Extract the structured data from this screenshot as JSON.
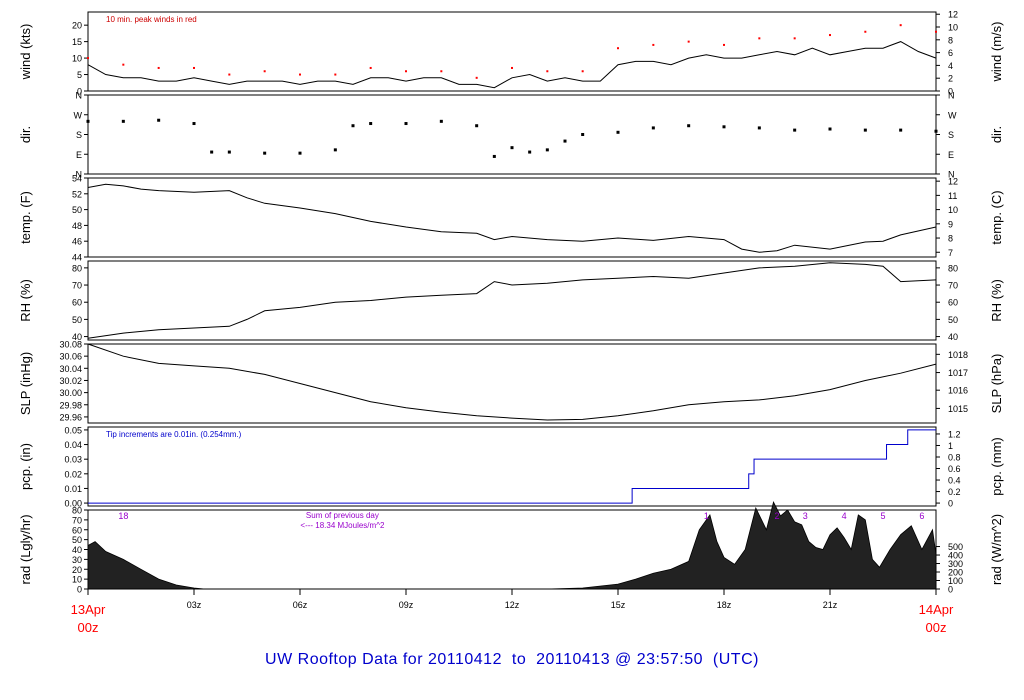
{
  "chart_data": {
    "type": "line",
    "title": "UW Rooftop Data for 20110412  to  20110413 @ 23:57:50  (UTC)",
    "x_domain_hours": [
      0,
      24
    ],
    "x_ticks": [
      {
        "h": 0,
        "label": ""
      },
      {
        "h": 3,
        "label": "03z"
      },
      {
        "h": 6,
        "label": "06z"
      },
      {
        "h": 9,
        "label": "09z"
      },
      {
        "h": 12,
        "label": "12z"
      },
      {
        "h": 15,
        "label": "15z"
      },
      {
        "h": 18,
        "label": "18z"
      },
      {
        "h": 21,
        "label": "21z"
      },
      {
        "h": 24,
        "label": ""
      }
    ],
    "x_edge_labels": {
      "start_day": "13Apr",
      "start_hour": "00z",
      "end_day": "14Apr",
      "end_hour": "00z",
      "color": "#ff0000"
    },
    "panels": [
      {
        "id": "wind",
        "ylabel_left": "wind (kts)",
        "ylabel_right": "wind (m/s)",
        "ylim": [
          0,
          24
        ],
        "left_ticks": [
          0,
          5,
          10,
          15,
          20
        ],
        "right_ticks": [
          0,
          2,
          4,
          6,
          8,
          10,
          12
        ],
        "right_tick_values_in_left_units": [
          0,
          3.89,
          7.78,
          11.66,
          15.55,
          19.44,
          23.33
        ],
        "annotation": "10 min. peak winds in red",
        "annotation_color": "#cc0000",
        "series": [
          {
            "name": "",
            "color": "#000000",
            "x": [
              0,
              0.5,
              1,
              1.5,
              2,
              2.5,
              3,
              3.5,
              4,
              4.5,
              5,
              5.5,
              6,
              6.5,
              7,
              7.5,
              8,
              8.5,
              9,
              9.5,
              10,
              10.5,
              11,
              11.5,
              12,
              12.5,
              13,
              13.5,
              14,
              14.5,
              15,
              15.5,
              16,
              16.5,
              17,
              17.5,
              18,
              18.5,
              19,
              19.5,
              20,
              20.5,
              21,
              21.5,
              22,
              22.5,
              23,
              23.5,
              24
            ],
            "y": [
              8,
              5,
              4,
              4,
              3,
              3,
              4,
              3,
              2,
              3,
              3,
              3,
              2,
              3,
              3,
              2,
              4,
              4,
              3,
              4,
              4,
              2,
              2,
              1,
              4,
              5,
              3,
              4,
              3,
              3,
              8,
              9,
              9,
              8,
              10,
              11,
              10,
              10,
              11,
              12,
              11,
              13,
              11,
              12,
              13,
              13,
              15,
              12,
              10
            ]
          },
          {
            "name": "",
            "color": "#ff0000",
            "x": [
              0,
              1,
              2,
              3,
              4,
              5,
              6,
              7,
              8,
              9,
              10,
              11,
              12,
              13,
              14,
              15,
              16,
              17,
              18,
              19,
              20,
              21,
              22,
              23,
              24
            ],
            "y": [
              10,
              8,
              7,
              7,
              5,
              6,
              5,
              5,
              7,
              6,
              6,
              4,
              7,
              6,
              6,
              13,
              14,
              15,
              14,
              16,
              16,
              17,
              18,
              20,
              18
            ]
          }
        ]
      },
      {
        "id": "dir",
        "ylabel_left": "dir.",
        "ylabel_right": "dir.",
        "ylim": [
          0,
          360
        ],
        "left_ticks": [
          {
            "v": 0,
            "l": "N"
          },
          {
            "v": 90,
            "l": "E"
          },
          {
            "v": 180,
            "l": "S"
          },
          {
            "v": 270,
            "l": "W"
          },
          {
            "v": 360,
            "l": "N"
          }
        ],
        "right_ticks": [
          {
            "v": 0,
            "l": "N"
          },
          {
            "v": 90,
            "l": "E"
          },
          {
            "v": 180,
            "l": "S"
          },
          {
            "v": 270,
            "l": "W"
          },
          {
            "v": 360,
            "l": "N"
          }
        ],
        "series": [
          {
            "name": "",
            "color": "#000000",
            "x": [
              0,
              1,
              2,
              3,
              3.5,
              4,
              5,
              6,
              7,
              7.5,
              8,
              9,
              10,
              11,
              11.5,
              12,
              12.5,
              13,
              13.5,
              14,
              15,
              16,
              17,
              18,
              19,
              20,
              21,
              22,
              23,
              24
            ],
            "y": [
              240,
              240,
              245,
              230,
              100,
              100,
              95,
              95,
              110,
              220,
              230,
              230,
              240,
              220,
              80,
              120,
              100,
              110,
              150,
              180,
              190,
              210,
              220,
              215,
              210,
              200,
              205,
              200,
              200,
              195
            ]
          }
        ]
      },
      {
        "id": "temp",
        "ylabel_left": "temp. (F)",
        "ylabel_right": "temp. (C)",
        "ylim": [
          44,
          54
        ],
        "left_ticks": [
          44,
          46,
          48,
          50,
          52,
          54
        ],
        "right_ticks": [
          7,
          8,
          9,
          10,
          11,
          12
        ],
        "right_tick_values_in_left_units": [
          44.6,
          46.4,
          48.2,
          50.0,
          51.8,
          53.6
        ],
        "series": [
          {
            "name": "",
            "color": "#000000",
            "x": [
              0,
              0.5,
              1,
              1.5,
              2,
              3,
              4,
              4.5,
              5,
              6,
              7,
              8,
              9,
              10,
              11,
              11.5,
              12,
              13,
              14,
              15,
              16,
              17,
              18,
              18.5,
              19,
              19.5,
              20,
              21,
              22,
              22.5,
              23,
              24
            ],
            "y": [
              52.8,
              53.2,
              53.0,
              52.6,
              52.4,
              52.2,
              52.4,
              51.5,
              50.8,
              50.2,
              49.5,
              48.5,
              47.8,
              47.2,
              47.0,
              46.2,
              46.6,
              46.2,
              46.0,
              46.4,
              46.1,
              46.6,
              46.2,
              45.0,
              44.6,
              44.8,
              45.5,
              45.0,
              45.9,
              46.0,
              46.8,
              47.8
            ]
          }
        ]
      },
      {
        "id": "rh",
        "ylabel_left": "RH (%)",
        "ylabel_right": "RH (%)",
        "ylim": [
          38,
          84
        ],
        "left_ticks": [
          40,
          50,
          60,
          70,
          80
        ],
        "right_ticks": [
          40,
          50,
          60,
          70,
          80
        ],
        "right_tick_values_in_left_units": [
          40,
          50,
          60,
          70,
          80
        ],
        "series": [
          {
            "name": "",
            "color": "#000000",
            "x": [
              0,
              1,
              2,
              3,
              4,
              4.5,
              5,
              6,
              7,
              8,
              9,
              10,
              11,
              11.5,
              12,
              13,
              14,
              15,
              16,
              17,
              18,
              19,
              20,
              21,
              22,
              22.5,
              23,
              24
            ],
            "y": [
              39,
              42,
              44,
              45,
              46,
              50,
              55,
              57,
              60,
              61,
              63,
              64,
              65,
              72,
              70,
              71,
              73,
              74,
              75,
              74,
              77,
              80,
              81,
              83,
              82,
              81,
              72,
              73
            ]
          }
        ]
      },
      {
        "id": "slp",
        "ylabel_left": "SLP (inHg)",
        "ylabel_right": "SLP (hPa)",
        "ylim": [
          29.95,
          30.08
        ],
        "left_ticks": [
          29.96,
          29.98,
          30.0,
          30.02,
          30.04,
          30.06,
          30.08
        ],
        "left_tick_labels": [
          "29.96",
          "29.98",
          "30.00",
          "30.02",
          "30.04",
          "30.06",
          "30.08"
        ],
        "right_ticks": [
          1015,
          1016,
          1017,
          1018
        ],
        "right_tick_values_in_left_units": [
          29.974,
          30.004,
          30.033,
          30.063
        ],
        "series": [
          {
            "name": "",
            "color": "#000000",
            "x": [
              0,
              1,
              2,
              3,
              4,
              5,
              6,
              7,
              8,
              9,
              10,
              11,
              12,
              13,
              14,
              15,
              16,
              17,
              18,
              19,
              20,
              21,
              22,
              23,
              24
            ],
            "y": [
              30.08,
              30.06,
              30.048,
              30.044,
              30.04,
              30.03,
              30.015,
              30.0,
              29.985,
              29.975,
              29.968,
              29.962,
              29.958,
              29.955,
              29.956,
              29.962,
              29.97,
              29.98,
              29.985,
              29.988,
              29.995,
              30.005,
              30.02,
              30.032,
              30.047
            ]
          }
        ]
      },
      {
        "id": "pcp",
        "ylabel_left": "pcp. (in)",
        "ylabel_right": "pcp. (mm)",
        "ylim": [
          -0.002,
          0.052
        ],
        "left_ticks": [
          0,
          0.01,
          0.02,
          0.03,
          0.04,
          0.05
        ],
        "left_tick_labels": [
          "0.00",
          "0.01",
          "0.02",
          "0.03",
          "0.04",
          "0.05"
        ],
        "right_ticks": [
          0,
          0.2,
          0.4,
          0.6,
          0.8,
          1,
          1.2
        ],
        "right_tick_labels": [
          "0",
          "0.2",
          "0.4",
          "0.6",
          "0.8",
          "1",
          "1.2"
        ],
        "right_tick_values_in_left_units": [
          0,
          0.00787,
          0.01575,
          0.02362,
          0.0315,
          0.03937,
          0.04724
        ],
        "annotation": "Tip increments are 0.01in. (0.254mm.)",
        "annotation_color": "#0000cc",
        "series": [
          {
            "name": "",
            "color": "#0000cc",
            "step": true,
            "x": [
              0,
              15.4,
              18.7,
              18.85,
              22.6,
              23.2,
              24
            ],
            "y": [
              0,
              0.01,
              0.02,
              0.03,
              0.04,
              0.05,
              0.05
            ]
          }
        ]
      },
      {
        "id": "rad",
        "ylabel_left": "rad (Lgly/hr)",
        "ylabel_right": "rad (W/m^2)",
        "ylim": [
          0,
          80
        ],
        "left_ticks": [
          0,
          10,
          20,
          30,
          40,
          50,
          60,
          70,
          80
        ],
        "right_ticks": [
          0,
          100,
          200,
          300,
          400,
          500
        ],
        "right_tick_values_in_left_units": [
          0,
          8.6,
          17.2,
          25.8,
          34.4,
          43.0
        ],
        "annotation_lines": [
          "Sum of previous day",
          "<--- 18.34 MJoules/m^2"
        ],
        "annotation_color": "#9900cc",
        "markers": [
          {
            "h": 1,
            "label": "18"
          },
          {
            "h": 17.5,
            "label": "1"
          },
          {
            "h": 19.5,
            "label": "2"
          },
          {
            "h": 20.3,
            "label": "3"
          },
          {
            "h": 21.4,
            "label": "4"
          },
          {
            "h": 22.5,
            "label": "5"
          },
          {
            "h": 23.6,
            "label": "6"
          }
        ],
        "series": [
          {
            "name": "",
            "color": "#000000",
            "fill": true,
            "x": [
              0,
              0.2,
              0.5,
              1,
              1.5,
              2,
              2.5,
              3,
              3.3,
              13,
              14,
              15,
              15.5,
              16,
              16.5,
              17,
              17.3,
              17.6,
              17.8,
              18,
              18.3,
              18.6,
              18.9,
              19.2,
              19.4,
              19.6,
              19.8,
              20,
              20.2,
              20.4,
              20.6,
              20.8,
              21,
              21.2,
              21.4,
              21.6,
              21.8,
              22,
              22.2,
              22.4,
              22.7,
              23,
              23.3,
              23.6,
              23.9,
              24
            ],
            "y": [
              44,
              48,
              38,
              30,
              20,
              10,
              4,
              1,
              0,
              0,
              1,
              5,
              10,
              16,
              20,
              28,
              60,
              75,
              48,
              32,
              25,
              40,
              82,
              60,
              88,
              74,
              80,
              68,
              65,
              48,
              42,
              40,
              55,
              62,
              52,
              40,
              75,
              70,
              30,
              22,
              40,
              55,
              64,
              40,
              60,
              35
            ]
          }
        ]
      }
    ]
  }
}
